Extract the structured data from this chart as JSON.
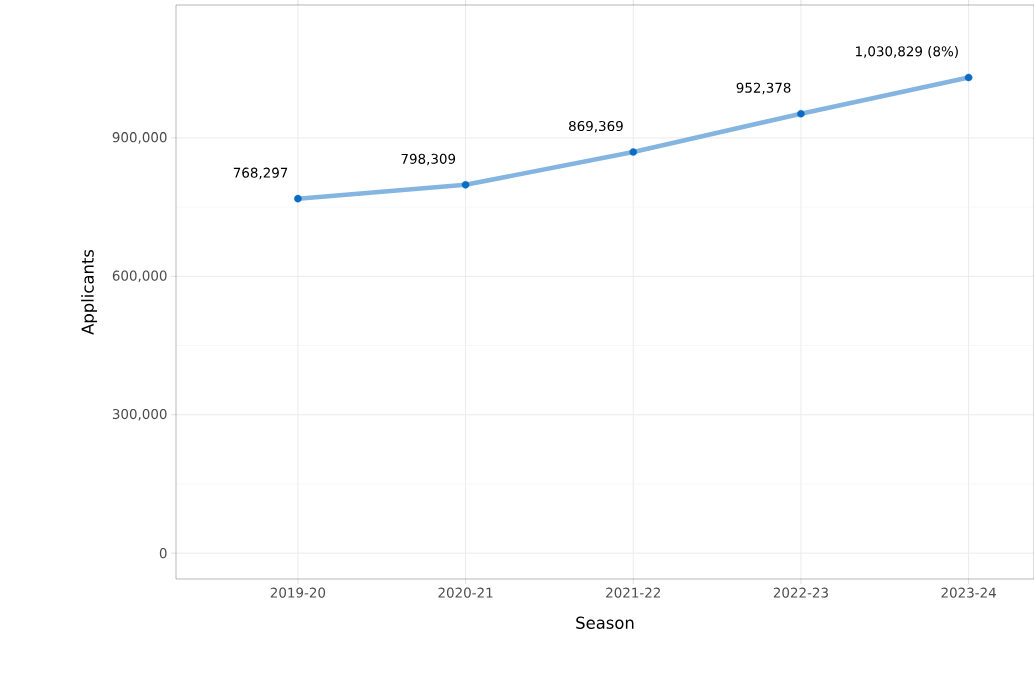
{
  "chart_data": {
    "type": "line",
    "xlabel": "Season",
    "ylabel": "Applicants",
    "categories": [
      "2019-20",
      "2020-21",
      "2021-22",
      "2022-23",
      "2023-24"
    ],
    "series": [
      {
        "color": "#0a6cc2",
        "values": [
          768297,
          798309,
          869369,
          952378,
          1030829
        ],
        "value_labels": [
          "768,297",
          "798,309",
          "869,369",
          "952,378",
          "1,030,829 (8%)"
        ]
      }
    ],
    "ylim": [
      -56000,
      1188000
    ],
    "yticks": [
      {
        "value": 0,
        "label": "0"
      },
      {
        "value": 300000,
        "label": "300,000"
      },
      {
        "value": 600000,
        "label": "600,000"
      },
      {
        "value": 900000,
        "label": "900,000"
      }
    ],
    "grid": true,
    "marker": "circle",
    "line_style": "solid"
  }
}
